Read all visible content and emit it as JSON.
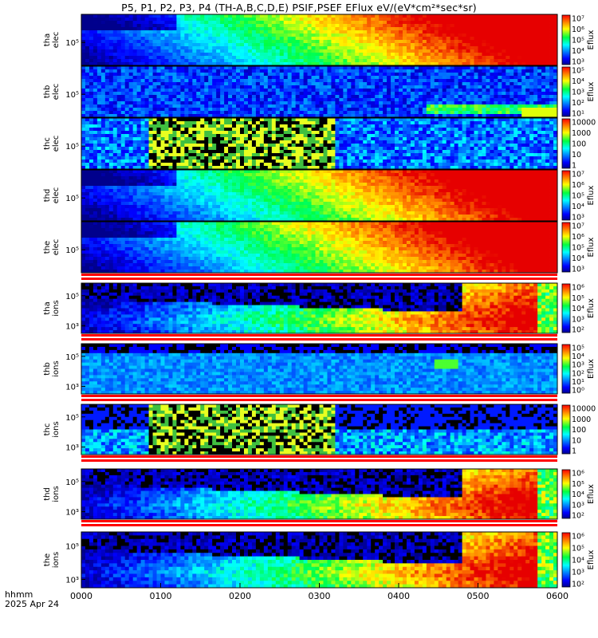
{
  "title": "P5, P1, P2, P3, P4 (TH-A,B,C,D,E) PSIF,PSEF EFlux eV/(eV*cm²*sec*sr)",
  "footer": {
    "row1": "hhmm",
    "row2": "2025 Apr 24"
  },
  "colorbar_label": "Eflux",
  "colors": {
    "band_red": "#ff0000",
    "band_white": "#ffffff",
    "plot_bg": "#000000"
  },
  "chart_data": {
    "type": "heatmap",
    "title": "P5, P1, P2, P3, P4 (TH-A,B,C,D,E) PSIF,PSEF EFlux eV/(eV*cm²*sec*sr)",
    "x": {
      "ticks": [
        "0000",
        "0100",
        "0200",
        "0300",
        "0400",
        "0500",
        "0600"
      ],
      "range_hhmm": [
        "0000",
        "0600"
      ],
      "date": "2025 Apr 24"
    },
    "colorscale": "rainbow (blue-cyan-green-yellow-red)",
    "panels": [
      {
        "probe": "tha",
        "species": "elec",
        "ylabels": [
          "tha",
          "elec"
        ],
        "yticks": [
          "10⁵"
        ],
        "cbar_ticks": [
          "10⁷",
          "10⁶",
          "10⁵",
          "10⁴",
          "10³"
        ],
        "cbar_label": "Eflux",
        "red_band": false
      },
      {
        "probe": "thb",
        "species": "elec",
        "ylabels": [
          "thb",
          "elec"
        ],
        "yticks": [
          "10⁵"
        ],
        "cbar_ticks": [
          "10⁵",
          "10⁴",
          "10³",
          "10²",
          "10¹"
        ],
        "cbar_label": "Eflux",
        "red_band": false
      },
      {
        "probe": "thc",
        "species": "elec",
        "ylabels": [
          "thc",
          "elec"
        ],
        "yticks": [
          "10⁵"
        ],
        "cbar_ticks": [
          "10000",
          "1000",
          "100",
          "10",
          "1"
        ],
        "cbar_label": "",
        "red_band": false,
        "note": "saturated yellow/green/black block from ~0045 to ~0320"
      },
      {
        "probe": "thd",
        "species": "elec",
        "ylabels": [
          "thd",
          "elec"
        ],
        "yticks": [
          "10⁵"
        ],
        "cbar_ticks": [
          "10⁷",
          "10⁶",
          "10⁵",
          "10⁴",
          "10³"
        ],
        "cbar_label": "Eflux",
        "red_band": false
      },
      {
        "probe": "the",
        "species": "elec",
        "ylabels": [
          "the",
          "elec"
        ],
        "yticks": [
          "10⁵"
        ],
        "cbar_ticks": [
          "10⁷",
          "10⁶",
          "10⁵",
          "10⁴",
          "10³"
        ],
        "cbar_label": "Eflux",
        "red_band": true
      },
      {
        "probe": "tha",
        "species": "ions",
        "ylabels": [
          "tha",
          "ions"
        ],
        "yticks": [
          "10⁵",
          "10³"
        ],
        "cbar_ticks": [
          "10⁶",
          "10⁵",
          "10⁴",
          "10³",
          "10²"
        ],
        "cbar_label": "Eflux",
        "red_band": true
      },
      {
        "probe": "thb",
        "species": "ions",
        "ylabels": [
          "thb",
          "ions"
        ],
        "yticks": [
          "10⁵",
          "10³"
        ],
        "cbar_ticks": [
          "10⁵",
          "10⁴",
          "10³",
          "10²",
          "10¹",
          "10⁰"
        ],
        "cbar_label": "Eflux",
        "red_band": true
      },
      {
        "probe": "thc",
        "species": "ions",
        "ylabels": [
          "thc",
          "ions"
        ],
        "yticks": [
          "10⁵",
          "10³"
        ],
        "cbar_ticks": [
          "10000",
          "1000",
          "100",
          "10",
          "1"
        ],
        "cbar_label": "",
        "red_band": true,
        "note": "saturated yellow/green/black block from ~0045 to ~0320"
      },
      {
        "probe": "thd",
        "species": "ions",
        "ylabels": [
          "thd",
          "ions"
        ],
        "yticks": [
          "10⁵",
          "10³"
        ],
        "cbar_ticks": [
          "10⁶",
          "10⁵",
          "10⁴",
          "10³",
          "10²"
        ],
        "cbar_label": "Eflux",
        "red_band": true
      },
      {
        "probe": "the",
        "species": "ions",
        "ylabels": [
          "the",
          "ions"
        ],
        "yticks": [
          "10⁵",
          "10³"
        ],
        "cbar_ticks": [
          "10⁶",
          "10⁵",
          "10⁴",
          "10³",
          "10²"
        ],
        "cbar_label": "Eflux",
        "red_band": false
      }
    ]
  }
}
